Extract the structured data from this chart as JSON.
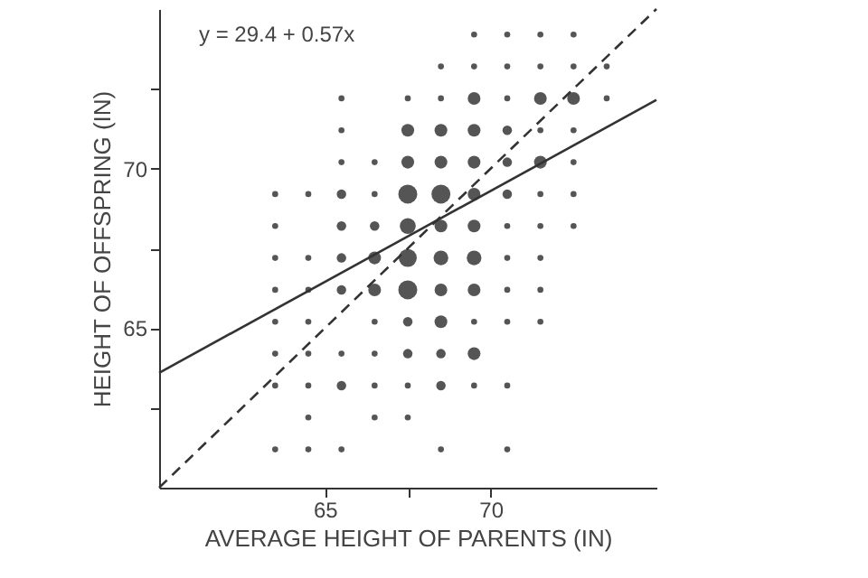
{
  "chart_data": {
    "type": "bubble",
    "xlabel": "AVERAGE HEIGHT OF PARENTS (IN)",
    "ylabel": "HEIGHT OF OFFSPRING (IN)",
    "xlim": [
      60,
      75
    ],
    "ylim": [
      60,
      75
    ],
    "xticks": [
      65,
      {
        "value": 67.5,
        "label": null
      },
      70
    ],
    "yticks": [
      {
        "value": 62.5,
        "label": null
      },
      65,
      {
        "value": 67.5,
        "label": null
      },
      70,
      {
        "value": 72.5,
        "label": null
      }
    ],
    "grid": false,
    "annotations": [
      "y = 29.4 + 0.57x"
    ],
    "series": [
      {
        "color": "#555555",
        "x": [
          69.5,
          70.5,
          71.5,
          72.5,
          68.5,
          69.5,
          70.5,
          71.5,
          72.5,
          73.5,
          65.5,
          67.5,
          68.5,
          69.5,
          70.5,
          71.5,
          72.5,
          73.5,
          65.5,
          67.5,
          68.5,
          69.5,
          70.5,
          71.5,
          72.5,
          65.5,
          66.5,
          67.5,
          68.5,
          69.5,
          70.5,
          71.5,
          72.5,
          63.5,
          64.5,
          65.5,
          66.5,
          67.5,
          68.5,
          69.5,
          70.5,
          71.5,
          72.5,
          63.5,
          65.5,
          66.5,
          67.5,
          68.5,
          69.5,
          70.5,
          71.5,
          72.5,
          63.5,
          64.5,
          65.5,
          66.5,
          67.5,
          68.5,
          69.5,
          70.5,
          71.5,
          63.5,
          64.5,
          65.5,
          66.5,
          67.5,
          68.5,
          69.5,
          70.5,
          71.5,
          63.5,
          64.5,
          66.5,
          67.5,
          68.5,
          69.5,
          70.5,
          71.5,
          63.5,
          64.5,
          65.5,
          66.5,
          67.5,
          68.5,
          69.5,
          63.5,
          64.5,
          65.5,
          66.5,
          67.5,
          68.5,
          69.5,
          70.5,
          64.5,
          66.5,
          67.5,
          63.5,
          64.5,
          65.5,
          68.5,
          70.5
        ],
        "values": [
          74.2,
          74.2,
          74.2,
          74.2,
          73.2,
          73.2,
          73.2,
          73.2,
          73.2,
          73.2,
          72.2,
          72.2,
          72.2,
          72.2,
          72.2,
          72.2,
          72.2,
          72.2,
          71.2,
          71.2,
          71.2,
          71.2,
          71.2,
          71.2,
          71.2,
          70.2,
          70.2,
          70.2,
          70.2,
          70.2,
          70.2,
          70.2,
          70.2,
          69.2,
          69.2,
          69.2,
          69.2,
          69.2,
          69.2,
          69.2,
          69.2,
          69.2,
          69.2,
          68.2,
          68.2,
          68.2,
          68.2,
          68.2,
          68.2,
          68.2,
          68.2,
          68.2,
          67.2,
          67.2,
          67.2,
          67.2,
          67.2,
          67.2,
          67.2,
          67.2,
          67.2,
          66.2,
          66.2,
          66.2,
          66.2,
          66.2,
          66.2,
          66.2,
          66.2,
          66.2,
          65.2,
          65.2,
          65.2,
          65.2,
          65.2,
          65.2,
          65.2,
          65.2,
          64.2,
          64.2,
          64.2,
          64.2,
          64.2,
          64.2,
          64.2,
          63.2,
          63.2,
          63.2,
          63.2,
          63.2,
          63.2,
          63.2,
          63.2,
          62.2,
          62.2,
          62.2,
          61.2,
          61.2,
          61.2,
          61.2,
          61.2
        ],
        "sizes": [
          0.1,
          0.1,
          0.1,
          0.1,
          0.1,
          0.1,
          0.1,
          0.1,
          0.1,
          0.1,
          0.1,
          0.1,
          0.1,
          0.45,
          0.1,
          0.45,
          0.45,
          0.1,
          0.1,
          0.45,
          0.45,
          0.45,
          0.25,
          0.1,
          0.1,
          0.1,
          0.1,
          0.45,
          0.45,
          0.45,
          0.25,
          0.45,
          0.1,
          0.1,
          0.1,
          0.25,
          0.1,
          1,
          1,
          0.45,
          0.25,
          0.1,
          0.1,
          0.1,
          0.25,
          0.25,
          0.7,
          0.45,
          0.45,
          0.1,
          0.1,
          0.1,
          0.1,
          0.1,
          0.25,
          0.45,
          0.9,
          0.6,
          0.6,
          0.1,
          0.1,
          0.1,
          0.1,
          0.25,
          0.45,
          1,
          0.45,
          0.45,
          0.1,
          0.1,
          0.1,
          0.1,
          0.1,
          0.25,
          0.45,
          0.1,
          0.1,
          0.1,
          0.1,
          0.1,
          0.1,
          0.1,
          0.25,
          0.25,
          0.45,
          0.1,
          0.1,
          0.25,
          0.1,
          0.1,
          0.25,
          0.1,
          0.1,
          0.1,
          0.1,
          0.1,
          0.1,
          0.1,
          0.1,
          0.1,
          0.1
        ]
      },
      {
        "type": "line",
        "color": "#333333",
        "line_style": "solid",
        "x": [
          60,
          75
        ],
        "values": [
          63.6,
          72.15
        ]
      },
      {
        "type": "line",
        "color": "#333333",
        "line_style": "dashed",
        "x": [
          60,
          75
        ],
        "values": [
          60,
          75
        ]
      }
    ]
  }
}
